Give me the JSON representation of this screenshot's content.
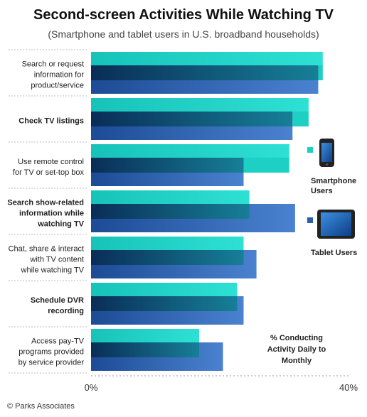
{
  "chart_data": {
    "type": "bar",
    "orientation": "horizontal",
    "title": "Second-screen Activities While Watching TV",
    "subtitle": "(Smartphone and tablet users in U.S. broadband households)",
    "categories": [
      {
        "lines": [
          "Search or request",
          "information for",
          "product/service"
        ],
        "bold": false
      },
      {
        "lines": [
          "Check TV listings"
        ],
        "bold": true
      },
      {
        "lines": [
          "Use remote control",
          "for TV or set-top box"
        ],
        "bold": false
      },
      {
        "lines": [
          "Search show-related",
          "information while",
          "watching TV"
        ],
        "bold": true
      },
      {
        "lines": [
          "Chat, share & interact",
          "with TV content",
          "while watching TV"
        ],
        "bold": false
      },
      {
        "lines": [
          "Schedule DVR",
          "recording"
        ],
        "bold": true
      },
      {
        "lines": [
          "Access pay-TV",
          "programs provided",
          "by service provider"
        ],
        "bold": false
      }
    ],
    "series": [
      {
        "name": "Smartphone Users",
        "color": "#1ecfc4",
        "values": [
          36,
          33.8,
          30.8,
          24.6,
          23.7,
          22.7,
          16.8
        ]
      },
      {
        "name": "Tablet Users",
        "color": "#2a5fb0",
        "values": [
          35.3,
          31.3,
          23.7,
          31.7,
          25.7,
          23.7,
          20.5
        ]
      }
    ],
    "xlim": [
      0,
      40
    ],
    "tick_labels": [
      "0%",
      "40%"
    ],
    "axis_note": [
      "% Conducting",
      "Activity Daily to",
      "Monthly"
    ],
    "legend": [
      "Smartphone",
      "Users",
      "Tablet Users"
    ],
    "grid": false,
    "legend_position": "right"
  },
  "credit": "© Parks Associates",
  "icons": [
    "smartphone-icon",
    "tablet-icon"
  ]
}
